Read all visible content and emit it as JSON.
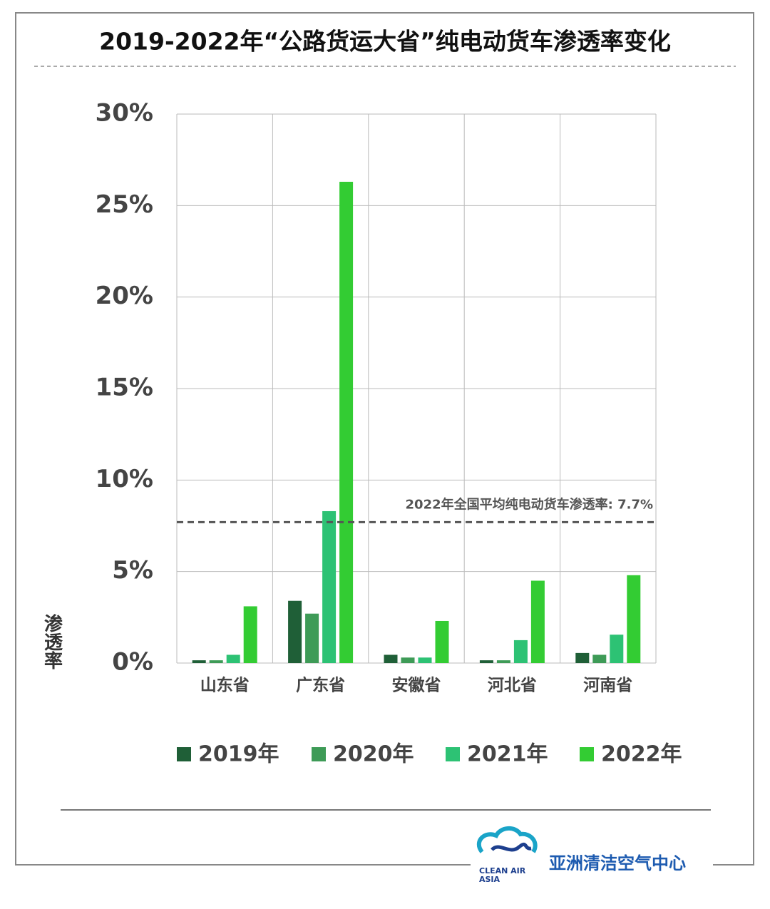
{
  "chart_data": {
    "type": "bar",
    "title": "2019-2022年“公路货运大省”纯电动货车渗透率变化",
    "y_label": "渗透率",
    "categories": [
      "山东省",
      "广东省",
      "安徽省",
      "河北省",
      "河南省"
    ],
    "series": [
      {
        "name": "2019年",
        "color": "#1f5f37",
        "values": [
          0.15,
          3.4,
          0.45,
          0.15,
          0.55
        ]
      },
      {
        "name": "2020年",
        "color": "#3e9b57",
        "values": [
          0.15,
          2.7,
          0.3,
          0.15,
          0.45
        ]
      },
      {
        "name": "2021年",
        "color": "#2dc274",
        "values": [
          0.45,
          8.3,
          0.3,
          1.25,
          1.55
        ]
      },
      {
        "name": "2022年",
        "color": "#33cc33",
        "values": [
          3.1,
          26.3,
          2.3,
          4.5,
          4.8
        ]
      }
    ],
    "ylim": [
      0,
      30
    ],
    "yticks": [
      {
        "value": 0,
        "label": "0%"
      },
      {
        "value": 5,
        "label": "5%"
      },
      {
        "value": 10,
        "label": "10%"
      },
      {
        "value": 15,
        "label": "15%"
      },
      {
        "value": 20,
        "label": "20%"
      },
      {
        "value": 25,
        "label": "25%"
      },
      {
        "value": 30,
        "label": "30%"
      }
    ],
    "grid": true,
    "reference_line": {
      "value": 7.7,
      "label": "2022年全国平均纯电动货车渗透率: 7.7%"
    }
  },
  "footer": {
    "logo_text": [
      "CLEAN AIR",
      "ASIA"
    ],
    "organization": "亚洲清洁空气中心"
  }
}
